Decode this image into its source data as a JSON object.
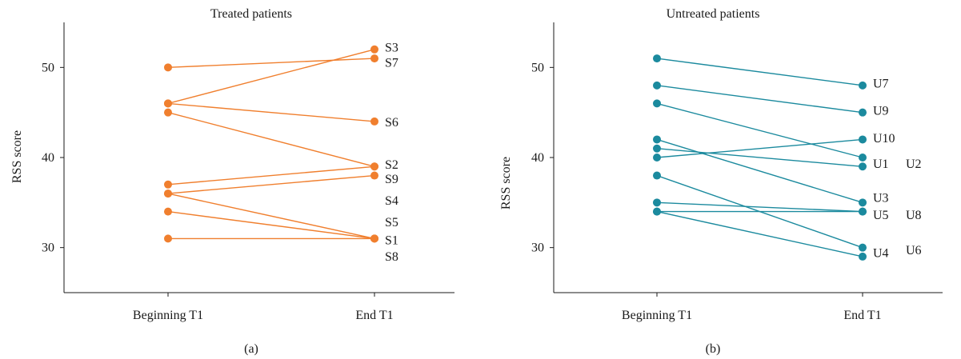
{
  "chart_data": [
    {
      "type": "line",
      "title": "Treated patients",
      "caption": "(a)",
      "xlabel": "",
      "ylabel": "RSS score",
      "categories": [
        "Beginning T1",
        "End T1"
      ],
      "yticks": [
        30,
        40,
        50
      ],
      "ylim": [
        25,
        55
      ],
      "color": "#f07f2e",
      "series": [
        {
          "name": "S1",
          "values": [
            34,
            31
          ]
        },
        {
          "name": "S2",
          "values": [
            45,
            39
          ]
        },
        {
          "name": "S3",
          "values": [
            46,
            52
          ]
        },
        {
          "name": "S4",
          "values": [
            36,
            38
          ]
        },
        {
          "name": "S5",
          "values": [
            36,
            31
          ]
        },
        {
          "name": "S6",
          "values": [
            46,
            44
          ]
        },
        {
          "name": "S7",
          "values": [
            50,
            51
          ]
        },
        {
          "name": "S8",
          "values": [
            31,
            31
          ]
        },
        {
          "name": "S9",
          "values": [
            37,
            39
          ]
        }
      ],
      "end_labels": [
        {
          "text": "S3",
          "y": 52.3
        },
        {
          "text": "S7",
          "y": 50.6
        },
        {
          "text": "S6",
          "y": 44
        },
        {
          "text": "S2",
          "y": 39.3
        },
        {
          "text": "S9",
          "y": 37.7
        },
        {
          "text": "S4",
          "y": 35.3
        },
        {
          "text": "S5",
          "y": 32.9
        },
        {
          "text": "S1",
          "y": 30.9
        },
        {
          "text": "S8",
          "y": 29.1
        }
      ]
    },
    {
      "type": "line",
      "title": "Untreated patients",
      "caption": "(b)",
      "xlabel": "",
      "ylabel": "RSS score",
      "categories": [
        "Beginning T1",
        "End T1"
      ],
      "yticks": [
        30,
        40,
        50
      ],
      "ylim": [
        25,
        55
      ],
      "color": "#1b8a9e",
      "series": [
        {
          "name": "U1",
          "values": [
            41,
            39
          ]
        },
        {
          "name": "U2",
          "values": [
            46,
            40
          ]
        },
        {
          "name": "U3",
          "values": [
            42,
            35
          ]
        },
        {
          "name": "U4",
          "values": [
            34,
            29
          ]
        },
        {
          "name": "U5",
          "values": [
            35,
            34
          ]
        },
        {
          "name": "U6",
          "values": [
            38,
            30
          ]
        },
        {
          "name": "U7",
          "values": [
            51,
            48
          ]
        },
        {
          "name": "U8",
          "values": [
            34,
            34
          ]
        },
        {
          "name": "U9",
          "values": [
            48,
            45
          ]
        },
        {
          "name": "U10",
          "values": [
            40,
            42
          ]
        }
      ],
      "end_labels": [
        {
          "text": "U7",
          "y": 48.3
        },
        {
          "text": "U9",
          "y": 45.3
        },
        {
          "text": "U10",
          "y": 42.2
        },
        {
          "text": "U1",
          "y": 39.4
        },
        {
          "text": "U2",
          "y": 39.4,
          "col": 2
        },
        {
          "text": "U3",
          "y": 35.6
        },
        {
          "text": "U5",
          "y": 33.7
        },
        {
          "text": "U8",
          "y": 33.7,
          "col": 2
        },
        {
          "text": "U4",
          "y": 29.5
        },
        {
          "text": "U6",
          "y": 29.8,
          "col": 2
        }
      ]
    }
  ]
}
